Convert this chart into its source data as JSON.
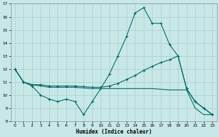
{
  "xlabel": "Humidex (Indice chaleur)",
  "xlim": [
    -0.5,
    23.5
  ],
  "ylim": [
    8,
    17
  ],
  "yticks": [
    8,
    9,
    10,
    11,
    12,
    13,
    14,
    15,
    16,
    17
  ],
  "xticks": [
    0,
    1,
    2,
    3,
    4,
    5,
    6,
    7,
    8,
    9,
    10,
    11,
    12,
    13,
    14,
    15,
    16,
    17,
    18,
    19,
    20,
    21,
    22,
    23
  ],
  "background_color": "#c8e8e8",
  "grid_color": "#a8cccc",
  "line_color": "#006666",
  "line1_x": [
    0,
    1,
    2,
    3,
    4,
    5,
    6,
    7,
    8,
    9,
    10,
    11,
    12,
    13,
    14,
    15,
    16,
    17,
    18,
    19,
    20,
    21,
    22,
    23
  ],
  "line1_y": [
    12,
    11,
    10.7,
    10.0,
    9.7,
    9.5,
    9.7,
    9.5,
    8.5,
    9.5,
    10.5,
    11.6,
    13.0,
    14.5,
    16.3,
    16.7,
    15.5,
    15.5,
    13.9,
    13.0,
    10.5,
    9.5,
    9.0,
    8.5
  ],
  "line2_x": [
    0,
    1,
    2,
    3,
    4,
    5,
    6,
    7,
    8,
    9,
    10,
    11,
    12,
    13,
    14,
    15,
    16,
    17,
    18,
    19,
    20,
    21,
    22,
    23
  ],
  "line2_y": [
    12,
    11,
    10.8,
    10.8,
    10.7,
    10.7,
    10.7,
    10.7,
    10.65,
    10.6,
    10.6,
    10.7,
    10.9,
    11.2,
    11.5,
    11.9,
    12.2,
    12.5,
    12.7,
    13.0,
    10.5,
    9.5,
    9.0,
    8.5
  ],
  "line3_x": [
    0,
    1,
    2,
    3,
    4,
    5,
    6,
    7,
    8,
    9,
    10,
    11,
    12,
    13,
    14,
    15,
    16,
    17,
    18,
    19,
    20,
    21,
    22,
    23
  ],
  "line3_y": [
    12,
    11,
    10.8,
    10.7,
    10.6,
    10.6,
    10.6,
    10.6,
    10.55,
    10.5,
    10.5,
    10.5,
    10.5,
    10.5,
    10.5,
    10.5,
    10.5,
    10.45,
    10.4,
    10.4,
    10.4,
    9.0,
    8.5,
    8.5
  ]
}
